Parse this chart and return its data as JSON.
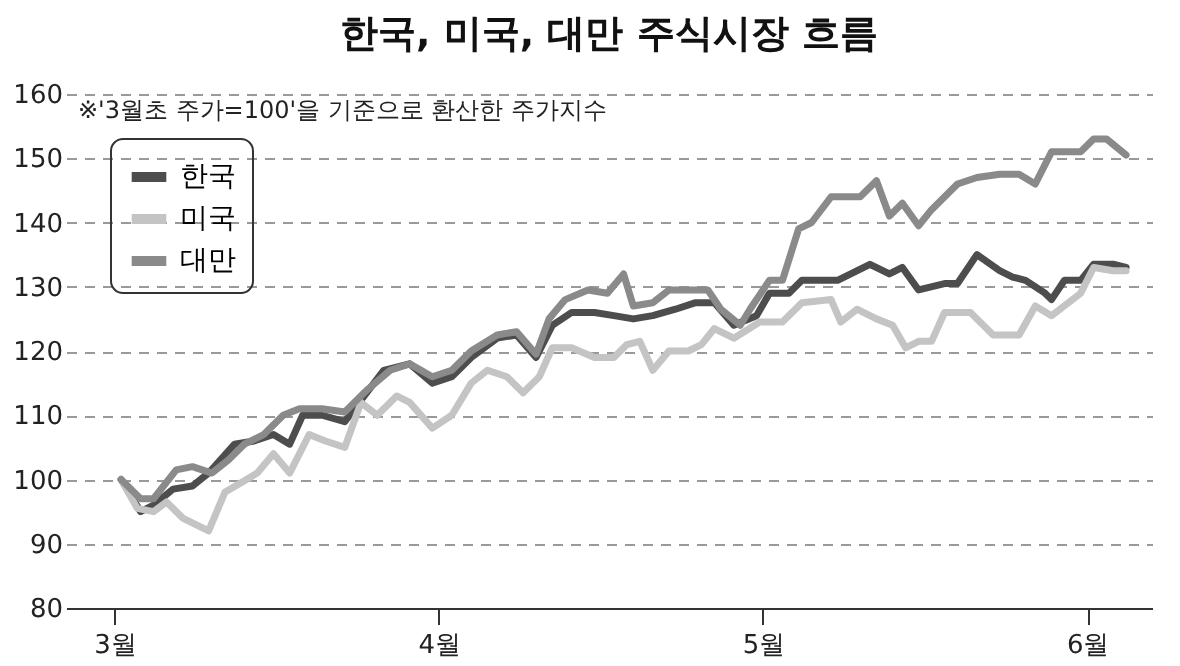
{
  "chart_data": {
    "type": "line",
    "title": "한국, 미국, 대만 주식시장 흐름",
    "annotations": [
      "※'3월초 주가=100'을 기준으로 환산한 주가지수"
    ],
    "xlim": [
      2.85,
      6.2
    ],
    "xticks": [
      {
        "value": 3,
        "label": "3월"
      },
      {
        "value": 4,
        "label": "4월"
      },
      {
        "value": 5,
        "label": "5월"
      },
      {
        "value": 6,
        "label": "6월"
      }
    ],
    "ylim": [
      80,
      160
    ],
    "yticks": [
      80,
      90,
      100,
      110,
      120,
      130,
      140,
      150,
      160
    ],
    "grid": "y",
    "legend": "top left",
    "line_style": "solid",
    "marker": "none",
    "series": [
      {
        "name": "한국",
        "color": "#4d4d4d",
        "x": [
          3.02,
          3.08,
          3.12,
          3.18,
          3.24,
          3.29,
          3.37,
          3.43,
          3.49,
          3.54,
          3.58,
          3.64,
          3.71,
          3.77,
          3.83,
          3.91,
          3.98,
          4.04,
          4.1,
          4.18,
          4.24,
          4.3,
          4.35,
          4.41,
          4.48,
          4.54,
          4.6,
          4.66,
          4.73,
          4.79,
          4.85,
          4.91,
          4.98,
          5.02,
          5.08,
          5.12,
          5.18,
          5.23,
          5.33,
          5.39,
          5.43,
          5.48,
          5.56,
          5.6,
          5.66,
          5.73,
          5.77,
          5.81,
          5.87,
          5.89,
          5.93,
          5.98,
          6.02,
          6.08,
          6.12
        ],
        "values": [
          100,
          95,
          96,
          98.5,
          99,
          101,
          105.5,
          106,
          107,
          105.5,
          110,
          110,
          109,
          113,
          117,
          118,
          115,
          116,
          119,
          122,
          122.5,
          119,
          124,
          126,
          126,
          125.5,
          125,
          125.5,
          126.5,
          127.5,
          127.5,
          124,
          125.5,
          129,
          129,
          131,
          131,
          131,
          133.5,
          132,
          133,
          129.5,
          130.5,
          130.5,
          135,
          132.5,
          131.5,
          131,
          129,
          128,
          131,
          131,
          133.5,
          133.5,
          133
        ]
      },
      {
        "name": "미국",
        "color": "#c4c4c4",
        "x": [
          3.02,
          3.07,
          3.12,
          3.16,
          3.21,
          3.29,
          3.34,
          3.39,
          3.44,
          3.49,
          3.54,
          3.6,
          3.65,
          3.71,
          3.76,
          3.81,
          3.87,
          3.91,
          3.98,
          4.04,
          4.1,
          4.15,
          4.21,
          4.26,
          4.31,
          4.35,
          4.41,
          4.48,
          4.54,
          4.58,
          4.62,
          4.66,
          4.71,
          4.77,
          4.81,
          4.85,
          4.91,
          4.99,
          5.06,
          5.12,
          5.21,
          5.24,
          5.29,
          5.35,
          5.4,
          5.44,
          5.48,
          5.52,
          5.56,
          5.64,
          5.71,
          5.79,
          5.84,
          5.89,
          5.98,
          6.02,
          6.08,
          6.12
        ],
        "values": [
          100,
          95.5,
          95,
          96.5,
          94,
          92,
          98,
          99.5,
          101,
          104,
          101,
          107,
          106,
          105,
          112,
          110,
          113,
          112,
          108,
          110,
          115,
          117,
          116,
          113.5,
          116,
          120.5,
          120.5,
          119,
          119,
          121,
          121.5,
          117,
          120,
          120,
          121,
          123.5,
          122,
          124.5,
          124.5,
          127.5,
          128,
          124.5,
          126.5,
          125,
          124,
          120.5,
          121.5,
          121.5,
          126,
          126,
          122.5,
          122.5,
          127,
          125.5,
          129,
          133,
          132.5,
          132.5
        ]
      },
      {
        "name": "대만",
        "color": "#8a8a8a",
        "x": [
          3.02,
          3.08,
          3.12,
          3.19,
          3.24,
          3.3,
          3.35,
          3.4,
          3.46,
          3.52,
          3.57,
          3.64,
          3.71,
          3.78,
          3.85,
          3.91,
          3.98,
          4.04,
          4.1,
          4.18,
          4.24,
          4.3,
          4.34,
          4.39,
          4.46,
          4.52,
          4.57,
          4.6,
          4.66,
          4.71,
          4.79,
          4.83,
          4.87,
          4.93,
          4.96,
          5.02,
          5.06,
          5.11,
          5.15,
          5.21,
          5.3,
          5.35,
          5.39,
          5.43,
          5.48,
          5.52,
          5.6,
          5.66,
          5.73,
          5.79,
          5.84,
          5.89,
          5.98,
          6.02,
          6.06,
          6.12
        ],
        "values": [
          100,
          97,
          97,
          101.5,
          102,
          101,
          103,
          105.5,
          107,
          110,
          111,
          111,
          110.5,
          114,
          117,
          118,
          116,
          117,
          120,
          122.5,
          123,
          119.5,
          125,
          128,
          129.5,
          129,
          132,
          127,
          127.5,
          129.5,
          129.5,
          129.5,
          126.5,
          124,
          126.5,
          131,
          131,
          139,
          140,
          144,
          144,
          146.5,
          141,
          143,
          139.5,
          142,
          146,
          147,
          147.5,
          147.5,
          146,
          151,
          151,
          153,
          153,
          150.5
        ]
      }
    ]
  }
}
